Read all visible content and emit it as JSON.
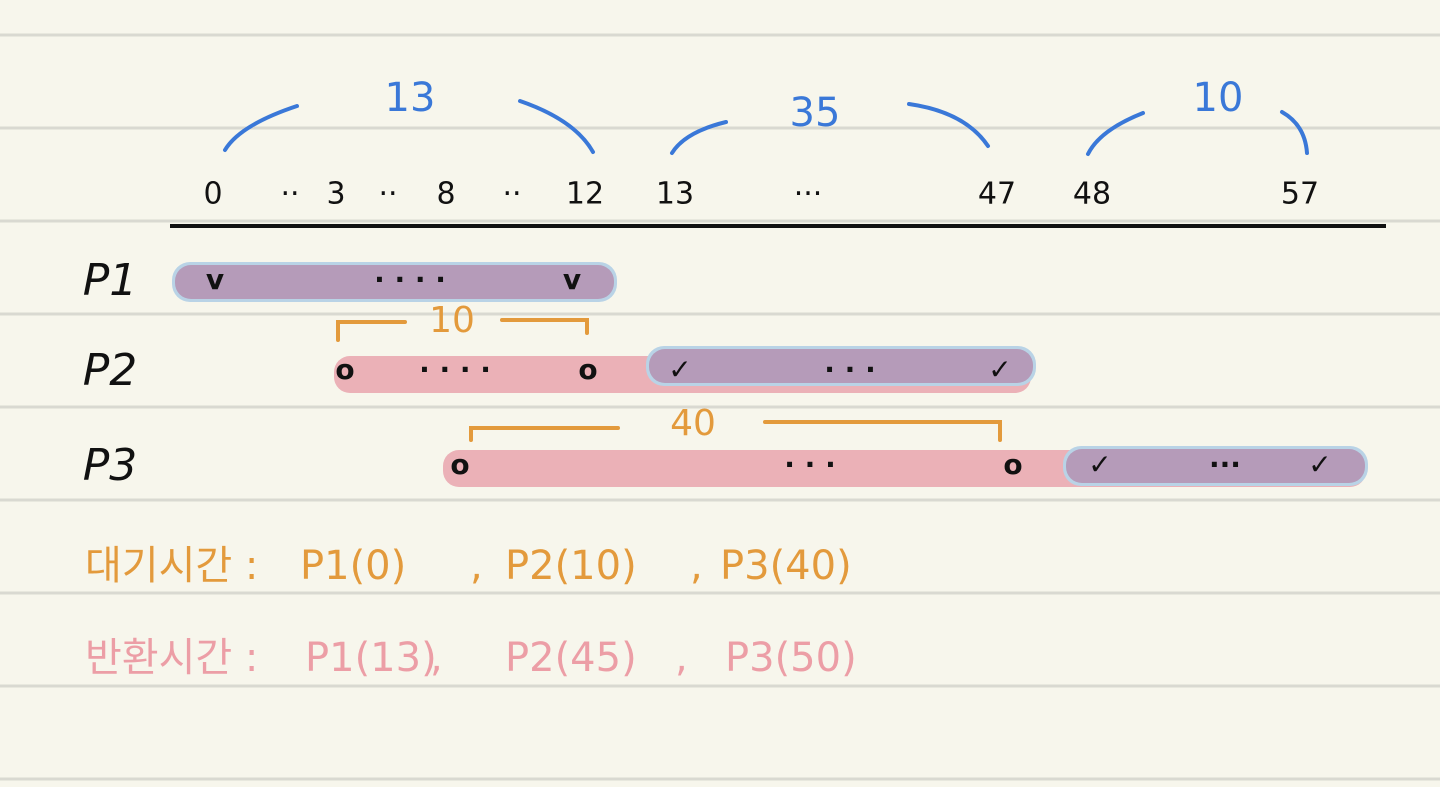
{
  "timeline": {
    "ticks": [
      "0",
      "··",
      "3",
      "··",
      "8",
      "··",
      "12",
      "13",
      "···",
      "47",
      "48",
      "57"
    ],
    "spans": [
      "13",
      "35",
      "10"
    ]
  },
  "processes": [
    {
      "label": "P1",
      "marks": [
        "v",
        "· · · ·",
        "v"
      ]
    },
    {
      "label": "P2",
      "wait": "10",
      "marks": [
        "o",
        "· · · ·",
        "o",
        "✓",
        "· · ·",
        "✓"
      ]
    },
    {
      "label": "P3",
      "wait": "40",
      "marks": [
        "o",
        "· · ·",
        "o",
        "✓",
        "···",
        "✓"
      ]
    }
  ],
  "summary": [
    {
      "label": "대기시간 :",
      "items": [
        "P1(0)",
        "P2(10)",
        "P3(40)"
      ],
      "separator": ","
    },
    {
      "label": "반환시간 :",
      "items": [
        "P1(13)",
        "P2(45)",
        "P3(50)"
      ],
      "separator": ","
    }
  ]
}
